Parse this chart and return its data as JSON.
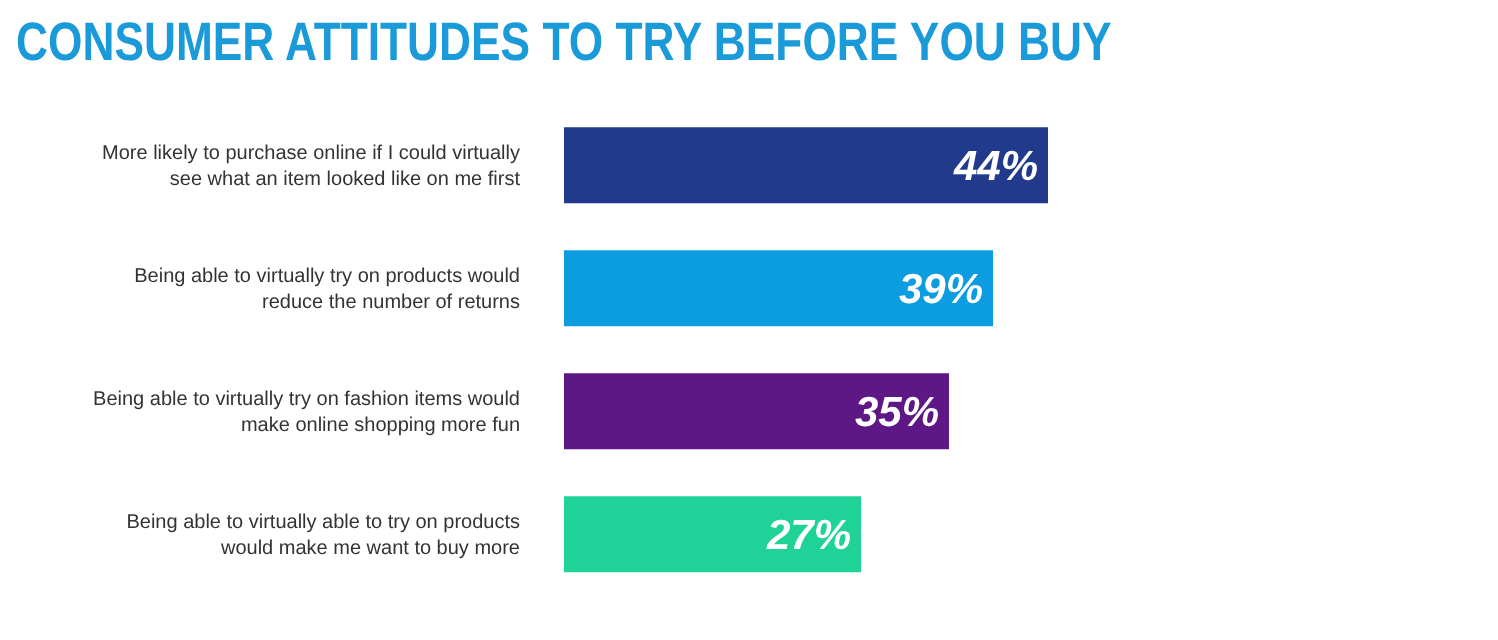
{
  "chart_data": {
    "type": "bar",
    "orientation": "horizontal",
    "title": "CONSUMER ATTITUDES TO TRY BEFORE YOU BUY",
    "categories": [
      "More likely to purchase online if I could virtually see what an item looked like on me first",
      "Being able to virtually try on products would reduce the number of returns",
      "Being able to virtually try on fashion items would make online shopping more fun",
      "Being able to virtually able to try on products would make me want to buy more"
    ],
    "values": [
      44,
      39,
      35,
      27
    ],
    "value_labels": [
      "44%",
      "39%",
      "35%",
      "27%"
    ],
    "colors": [
      "#213a8c",
      "#0b9ddf",
      "#5e1885",
      "#1fd398"
    ]
  }
}
